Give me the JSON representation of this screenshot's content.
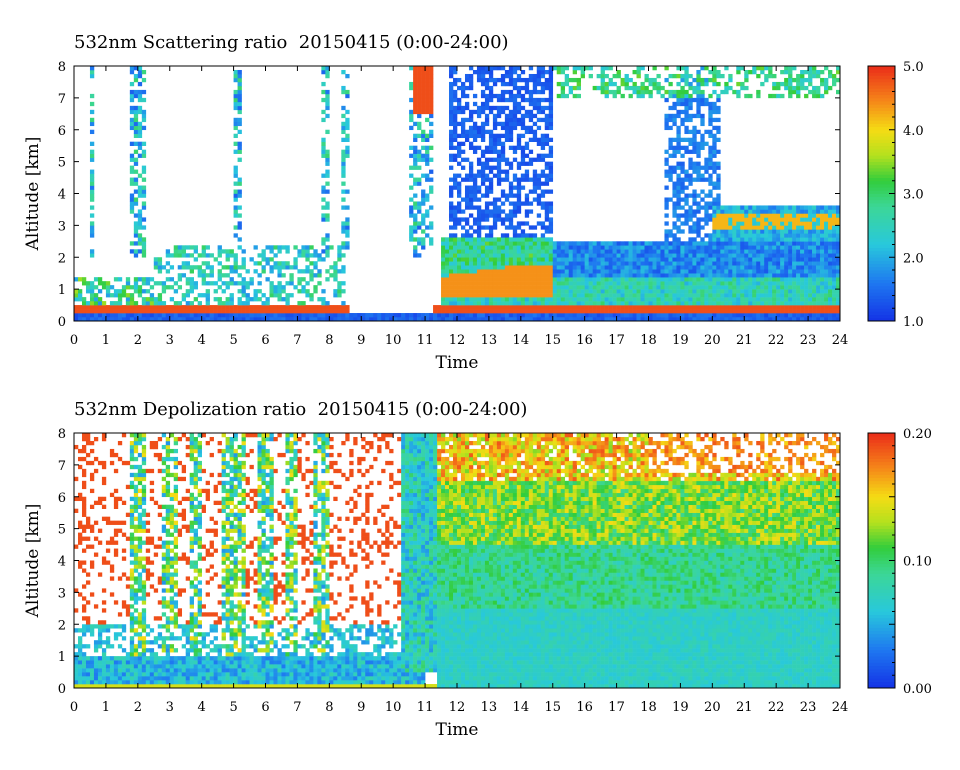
{
  "chart_data": [
    {
      "type": "heatmap",
      "title": "532nm Scattering ratio  20150415 (0:00-24:00)",
      "xlabel": "Time",
      "ylabel": "Altitude [km]",
      "xlim": [
        0,
        24
      ],
      "ylim": [
        0,
        8
      ],
      "x_ticks": [
        "0",
        "1",
        "2",
        "3",
        "4",
        "5",
        "6",
        "7",
        "8",
        "9",
        "10",
        "11",
        "12",
        "13",
        "14",
        "15",
        "16",
        "17",
        "18",
        "19",
        "20",
        "21",
        "22",
        "23",
        "24"
      ],
      "y_ticks": [
        "0",
        "1",
        "2",
        "3",
        "4",
        "5",
        "6",
        "7",
        "8"
      ],
      "colorbar": {
        "min": 1.0,
        "max": 5.0,
        "ticks": [
          "1.0",
          "2.0",
          "3.0",
          "4.0",
          "5.0"
        ]
      },
      "grid": false
    },
    {
      "type": "heatmap",
      "title": "532nm Depolization ratio  20150415 (0:00-24:00)",
      "xlabel": "Time",
      "ylabel": "Altitude [km]",
      "xlim": [
        0,
        24
      ],
      "ylim": [
        0,
        8
      ],
      "x_ticks": [
        "0",
        "1",
        "2",
        "3",
        "4",
        "5",
        "6",
        "7",
        "8",
        "9",
        "10",
        "11",
        "12",
        "13",
        "14",
        "15",
        "16",
        "17",
        "18",
        "19",
        "20",
        "21",
        "22",
        "23",
        "24"
      ],
      "y_ticks": [
        "0",
        "1",
        "2",
        "3",
        "4",
        "5",
        "6",
        "7",
        "8"
      ],
      "colorbar": {
        "min": 0.0,
        "max": 0.2,
        "ticks": [
          "0.00",
          "0.10",
          "0.20"
        ]
      },
      "grid": false
    }
  ]
}
